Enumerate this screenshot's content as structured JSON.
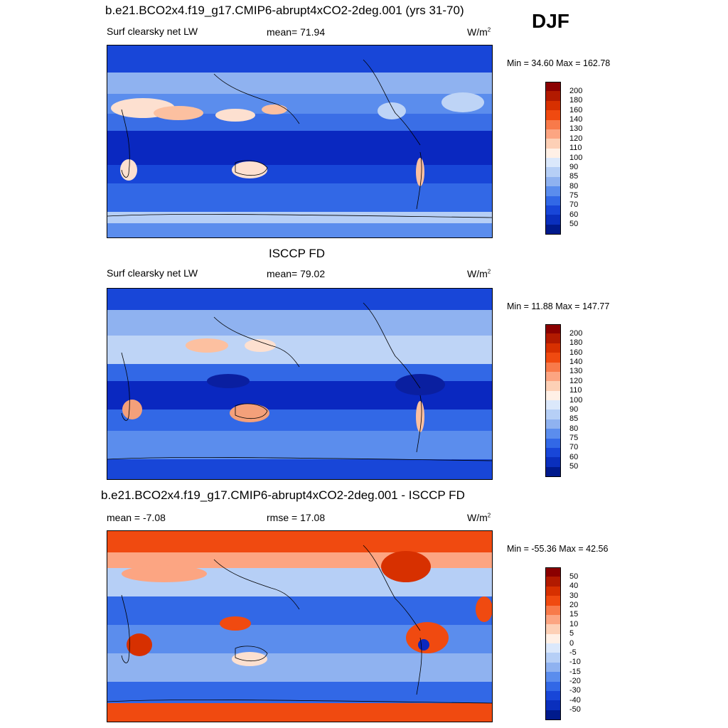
{
  "season": "DJF",
  "panels": [
    {
      "id": "model",
      "title": "b.e21.BCO2x4.f19_g17.CMIP6-abrupt4xCO2-2deg.001 (yrs 31-70)",
      "left_label": "Surf clearsky net LW",
      "center_label": "mean=  71.94",
      "units": "W/m",
      "units_sup": "2",
      "minmax": "Min =  34.60 Max = 162.78",
      "colorbar": {
        "labels": [
          "200",
          "180",
          "160",
          "140",
          "130",
          "120",
          "110",
          "100",
          "90",
          "85",
          "80",
          "75",
          "70",
          "60",
          "50"
        ],
        "colors": [
          "#8b0000",
          "#b21a00",
          "#d73000",
          "#f04a10",
          "#f87a4a",
          "#fca582",
          "#fdd0b6",
          "#fff0e6",
          "#dbe8fb",
          "#b6cff6",
          "#8fb2f0",
          "#5b8ded",
          "#3268e6",
          "#1846d8",
          "#0a2fbd",
          "#001a8c"
        ]
      },
      "map_palette": {
        "base": "#3a6ee6",
        "zones": [
          "#0a28c0",
          "#1846d8",
          "#5b8ded",
          "#bed4f6",
          "#fde0d0",
          "#fcc0a0"
        ]
      }
    },
    {
      "id": "obs",
      "title": "ISCCP FD",
      "left_label": "Surf clearsky net LW",
      "center_label": "mean=  79.02",
      "units": "W/m",
      "units_sup": "2",
      "minmax": "Min =  11.88 Max = 147.77",
      "colorbar": {
        "labels": [
          "200",
          "180",
          "160",
          "140",
          "130",
          "120",
          "110",
          "100",
          "90",
          "85",
          "80",
          "75",
          "70",
          "60",
          "50"
        ],
        "colors": [
          "#8b0000",
          "#b21a00",
          "#d73000",
          "#f04a10",
          "#f87a4a",
          "#fca582",
          "#fdd0b6",
          "#fff0e6",
          "#dbe8fb",
          "#b6cff6",
          "#8fb2f0",
          "#5b8ded",
          "#3268e6",
          "#1846d8",
          "#0a2fbd",
          "#001a8c"
        ]
      },
      "map_palette": {
        "base": "#2f5fe0",
        "zones": [
          "#0a1fa0",
          "#1846d8",
          "#5b8ded",
          "#bed4f6",
          "#fde0d0",
          "#f4a07a"
        ]
      }
    },
    {
      "id": "diff",
      "title": "b.e21.BCO2x4.f19_g17.CMIP6-abrupt4xCO2-2deg.001 - ISCCP FD",
      "left_label": "mean =  -7.08",
      "center_label": "rmse =  17.08",
      "units": "W/m",
      "units_sup": "2",
      "minmax": "Min = -55.36 Max =  42.56",
      "colorbar": {
        "labels": [
          "50",
          "40",
          "30",
          "20",
          "15",
          "10",
          "5",
          "0",
          "-5",
          "-10",
          "-15",
          "-20",
          "-30",
          "-40",
          "-50"
        ],
        "colors": [
          "#8b0000",
          "#b21a00",
          "#d73000",
          "#f04a10",
          "#f87a4a",
          "#fca582",
          "#fdd0b6",
          "#fff0e6",
          "#dbe8fb",
          "#b6cff6",
          "#8fb2f0",
          "#5b8ded",
          "#3268e6",
          "#1846d8",
          "#0a2fbd",
          "#001a8c"
        ]
      },
      "map_palette": {
        "base": "#6f9bf0",
        "zones": [
          "#f04a10",
          "#fca582",
          "#3268e6",
          "#fde0d0",
          "#b6cff6",
          "#d73000"
        ]
      }
    }
  ]
}
